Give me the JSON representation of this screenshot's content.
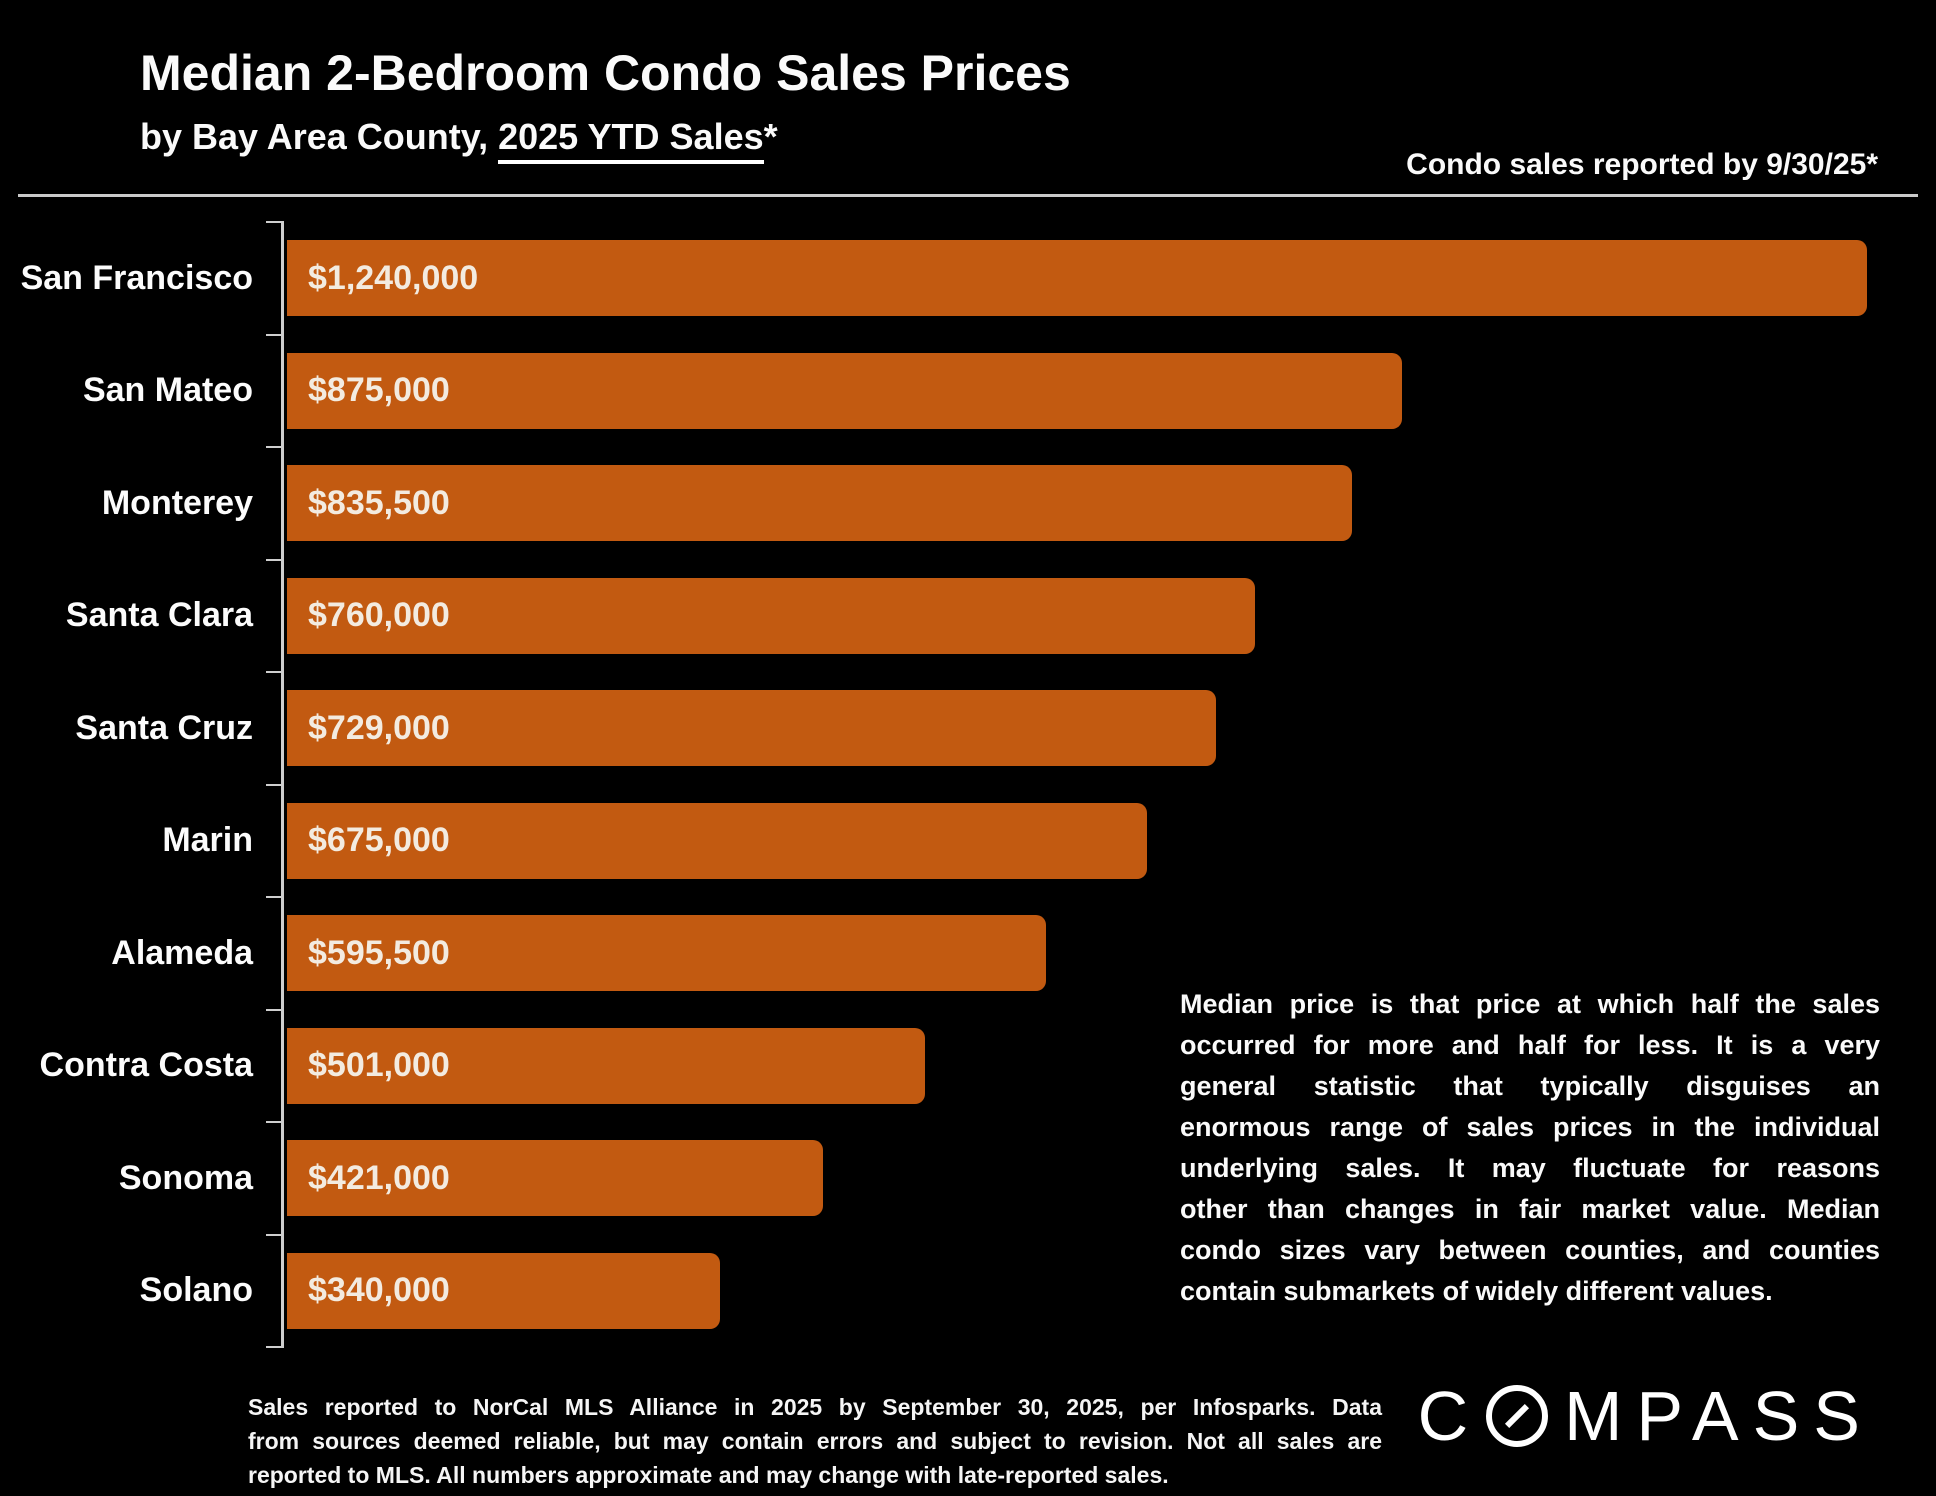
{
  "page": {
    "background_color": "#000000"
  },
  "header": {
    "title": "Median 2-Bedroom Condo Sales Prices",
    "subtitle_prefix": "by Bay Area County, ",
    "subtitle_underline": "2025 YTD Sales",
    "subtitle_suffix": "*",
    "right_note": "Condo sales reported by 9/30/25*"
  },
  "chart_data": {
    "type": "bar",
    "orientation": "horizontal",
    "title": "Median 2-Bedroom Condo Sales Prices by Bay Area County, 2025 YTD Sales",
    "categories": [
      "San Francisco",
      "San Mateo",
      "Monterey",
      "Santa Clara",
      "Santa Cruz",
      "Marin",
      "Alameda",
      "Contra Costa",
      "Sonoma",
      "Solano"
    ],
    "values": [
      1240000,
      875000,
      835500,
      760000,
      729000,
      675000,
      595500,
      501000,
      421000,
      340000
    ],
    "value_labels": [
      "$1,240,000",
      "$875,000",
      "$835,500",
      "$760,000",
      "$729,000",
      "$675,000",
      "$595,500",
      "$501,000",
      "$421,000",
      "$340,000"
    ],
    "xlim": [
      0,
      1240000
    ],
    "bar_color": "#C25A11",
    "label_color": "#F3EBE0",
    "axis_color": "#CFCFCF",
    "grid": false,
    "legend": false
  },
  "annotation": {
    "lines": [
      "Median price is that price at which half the sales",
      "occurred for more and half for less. It is a very",
      "general statistic that typically disguises an",
      "enormous range of sales prices in the individual",
      "underlying sales. It may fluctuate for reasons",
      "other than changes in fair market value. Median",
      "condo sizes vary between counties, and counties",
      "contain submarkets of widely different values."
    ]
  },
  "footer": {
    "disclaimer_lines": [
      "Sales reported to NorCal MLS Alliance in 2025 by September 30, 2025, per Infosparks. Data",
      "from sources deemed reliable, but may contain errors and subject to revision. Not all sales are",
      "reported to MLS. All numbers approximate and may change with late-reported sales."
    ],
    "logo": {
      "text": "COMPASS",
      "before_o": "C",
      "after_o": "MPASS"
    }
  }
}
